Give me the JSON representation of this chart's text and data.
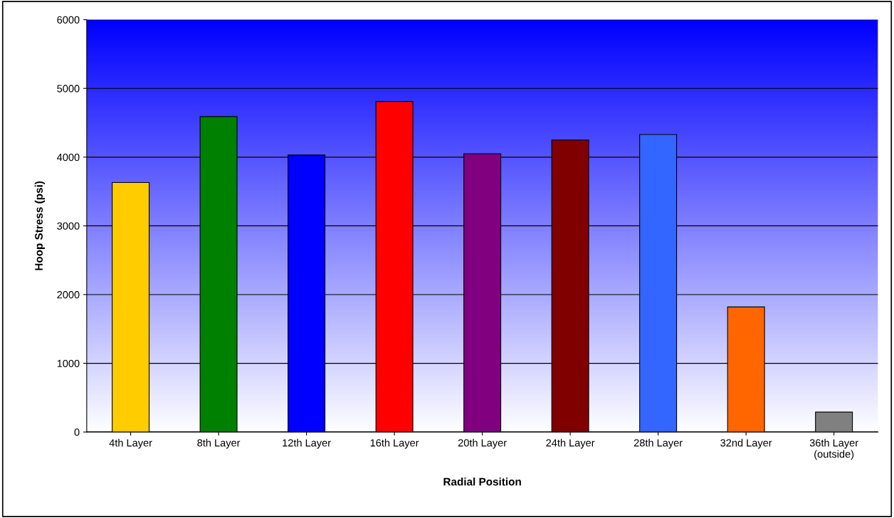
{
  "chart_data": {
    "type": "bar",
    "xlabel": "Radial Position",
    "ylabel": "Hoop Stress (psi)",
    "categories": [
      "4th Layer",
      "8th Layer",
      "12th Layer",
      "16th Layer",
      "20th Layer",
      "24th Layer",
      "28th Layer",
      "32nd Layer",
      "36th Layer\n(outside)"
    ],
    "values": [
      3630,
      4590,
      4030,
      4810,
      4050,
      4250,
      4330,
      1820,
      290
    ],
    "colors": [
      "#ffcc00",
      "#008000",
      "#0000ff",
      "#ff0000",
      "#800080",
      "#800000",
      "#3366ff",
      "#ff6600",
      "#808080"
    ],
    "ylim": [
      0,
      6000
    ],
    "yticks": [
      0,
      1000,
      2000,
      3000,
      4000,
      5000,
      6000
    ],
    "grid": "y",
    "legend": false
  }
}
